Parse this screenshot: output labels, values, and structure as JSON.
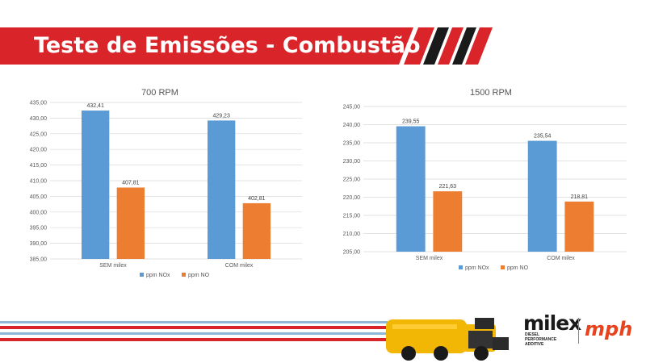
{
  "slide_title": "Teste de Emissões - Combustão",
  "colors": {
    "nox": "#5b9bd5",
    "no": "#ed7d31",
    "banner": "#d9252a"
  },
  "chart_data": [
    {
      "type": "bar",
      "title": "700 RPM",
      "categories": [
        "SEM milex",
        "COM milex"
      ],
      "series": [
        {
          "name": "ppm NOx",
          "values": [
            432.41,
            429.23
          ],
          "labels": [
            "432,41",
            "429,23"
          ]
        },
        {
          "name": "ppm NO",
          "values": [
            407.81,
            402.81
          ],
          "labels": [
            "407,81",
            "402,81"
          ]
        }
      ],
      "ylim": [
        385,
        435
      ],
      "yticks": [
        "385,00",
        "390,00",
        "395,00",
        "400,00",
        "405,00",
        "410,00",
        "415,00",
        "420,00",
        "425,00",
        "430,00",
        "435,00"
      ],
      "grid": true,
      "legend": "bottom"
    },
    {
      "type": "bar",
      "title": "1500 RPM",
      "categories": [
        "SEM milex",
        "COM milex"
      ],
      "series": [
        {
          "name": "ppm NOx",
          "values": [
            239.55,
            235.54
          ],
          "labels": [
            "239,55",
            "235,54"
          ]
        },
        {
          "name": "ppm NO",
          "values": [
            221.63,
            218.81
          ],
          "labels": [
            "221,63",
            "218,81"
          ]
        }
      ],
      "ylim": [
        205,
        245
      ],
      "yticks": [
        "205,00",
        "210,00",
        "215,00",
        "220,00",
        "225,00",
        "230,00",
        "235,00",
        "240,00",
        "245,00"
      ],
      "grid": true,
      "legend": "bottom"
    }
  ],
  "branding": {
    "milex": "milex",
    "milex_sub": "DIESEL PERFORMANCE ADDITIVE",
    "mph": "mph"
  }
}
